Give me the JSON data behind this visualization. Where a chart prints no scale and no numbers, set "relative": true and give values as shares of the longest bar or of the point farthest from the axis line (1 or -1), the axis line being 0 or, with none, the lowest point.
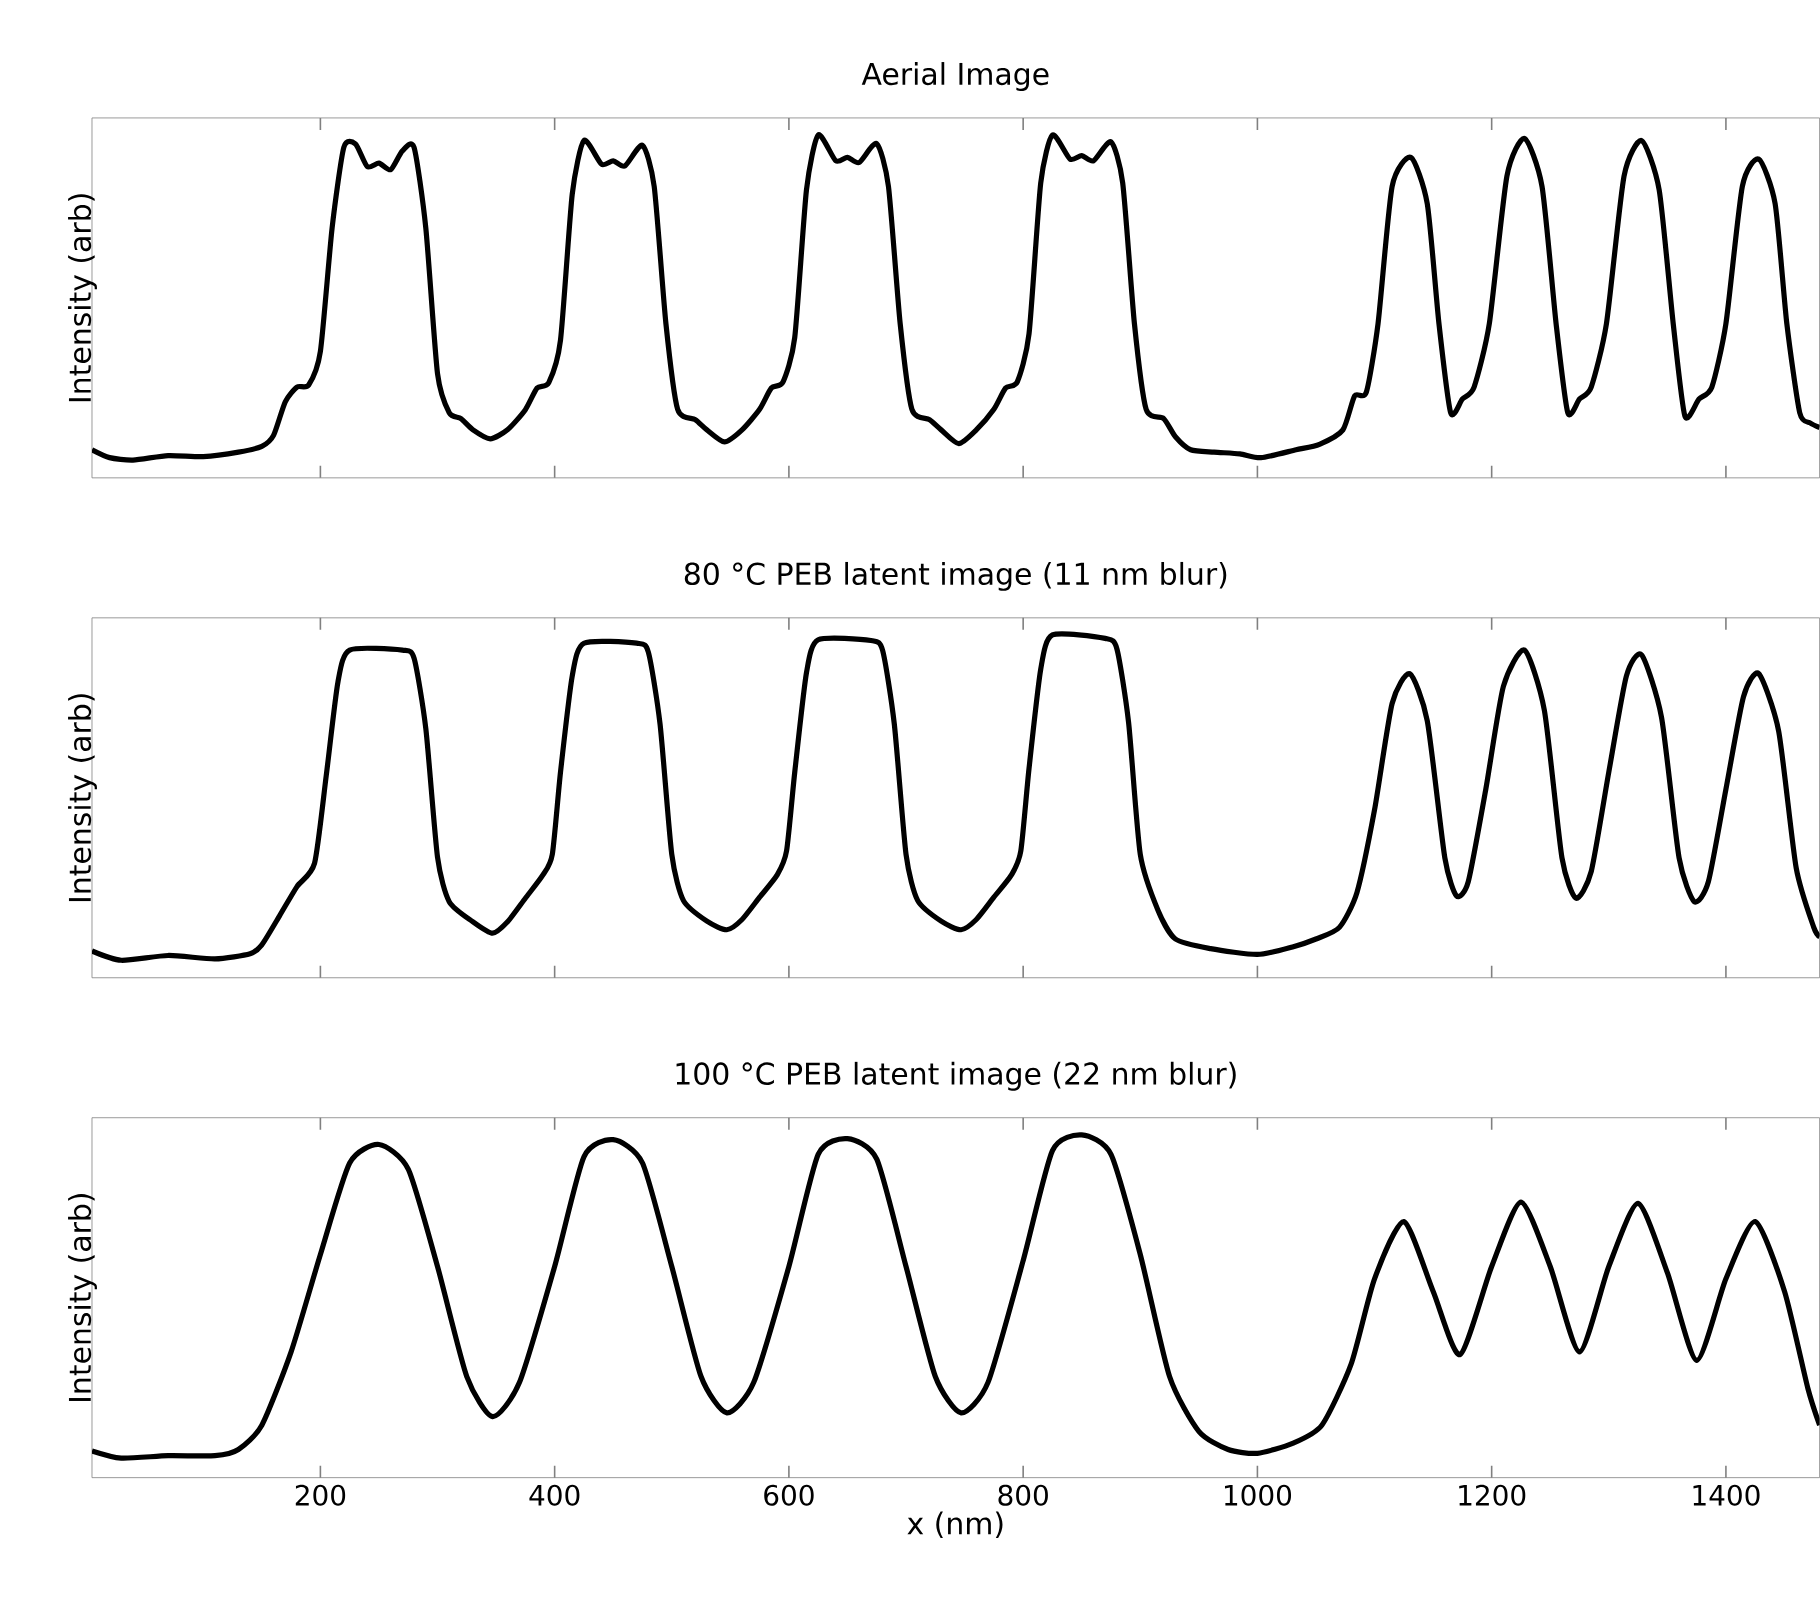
{
  "chart_data": [
    {
      "type": "line",
      "title": "Aerial Image",
      "ylabel": "Intensity (arb)",
      "relative": true,
      "xlim": [
        5,
        1480
      ],
      "xticks": [
        200,
        400,
        600,
        800,
        1000,
        1200,
        1400
      ],
      "tick_labels": false,
      "color": "#000000",
      "x": [
        5,
        20,
        40,
        70,
        100,
        130,
        150,
        160,
        170,
        180,
        190,
        200,
        210,
        220,
        230,
        240,
        250,
        260,
        270,
        280,
        290,
        300,
        310,
        320,
        330,
        345,
        360,
        375,
        385,
        395,
        405,
        415,
        425,
        440,
        450,
        460,
        475,
        485,
        495,
        505,
        520,
        530,
        545,
        560,
        575,
        585,
        595,
        605,
        615,
        625,
        640,
        650,
        660,
        675,
        685,
        695,
        705,
        720,
        730,
        745,
        760,
        775,
        785,
        795,
        805,
        815,
        825,
        840,
        850,
        860,
        875,
        885,
        895,
        905,
        920,
        930,
        943,
        963,
        985,
        1003,
        1033,
        1053,
        1073,
        1083,
        1093,
        1103,
        1115,
        1131,
        1145,
        1155,
        1165,
        1175,
        1185,
        1198,
        1213,
        1228,
        1243,
        1255,
        1265,
        1275,
        1285,
        1298,
        1313,
        1328,
        1343,
        1355,
        1365,
        1377,
        1388,
        1400,
        1414,
        1428,
        1442,
        1452,
        1463,
        1472,
        1480
      ],
      "values": [
        0.082,
        0.059,
        0.052,
        0.065,
        0.062,
        0.075,
        0.092,
        0.124,
        0.222,
        0.265,
        0.271,
        0.369,
        0.729,
        0.964,
        0.974,
        0.908,
        0.918,
        0.899,
        0.954,
        0.964,
        0.729,
        0.304,
        0.19,
        0.173,
        0.141,
        0.114,
        0.141,
        0.199,
        0.262,
        0.278,
        0.402,
        0.827,
        0.984,
        0.915,
        0.925,
        0.91,
        0.97,
        0.85,
        0.45,
        0.2,
        0.17,
        0.14,
        0.105,
        0.14,
        0.2,
        0.262,
        0.28,
        0.41,
        0.84,
        1.0,
        0.925,
        0.935,
        0.92,
        0.975,
        0.85,
        0.45,
        0.2,
        0.17,
        0.14,
        0.1,
        0.14,
        0.2,
        0.262,
        0.28,
        0.42,
        0.86,
        1.0,
        0.93,
        0.94,
        0.925,
        0.98,
        0.86,
        0.45,
        0.2,
        0.173,
        0.12,
        0.082,
        0.075,
        0.07,
        0.059,
        0.082,
        0.098,
        0.14,
        0.239,
        0.25,
        0.45,
        0.85,
        0.935,
        0.8,
        0.45,
        0.19,
        0.23,
        0.265,
        0.45,
        0.88,
        0.99,
        0.85,
        0.45,
        0.19,
        0.23,
        0.265,
        0.45,
        0.88,
        0.984,
        0.84,
        0.45,
        0.18,
        0.23,
        0.265,
        0.45,
        0.85,
        0.93,
        0.8,
        0.45,
        0.19,
        0.16,
        0.147
      ]
    },
    {
      "type": "line",
      "title": "80 °C PEB latent image (11 nm blur)",
      "ylabel": "Intensity (arb)",
      "relative": true,
      "xlim": [
        5,
        1480
      ],
      "xticks": [
        200,
        400,
        600,
        800,
        1000,
        1200,
        1400
      ],
      "tick_labels": false,
      "color": "#000000",
      "x": [
        5,
        30,
        70,
        110,
        140,
        150,
        165,
        180,
        195,
        205,
        215,
        225,
        270,
        280,
        290,
        300,
        310,
        330,
        347,
        360,
        375,
        390,
        398,
        405,
        415,
        425,
        470,
        480,
        490,
        500,
        510,
        530,
        547,
        560,
        575,
        590,
        598,
        605,
        615,
        625,
        670,
        680,
        690,
        700,
        710,
        730,
        747,
        760,
        775,
        790,
        798,
        805,
        815,
        825,
        870,
        880,
        890,
        900,
        915,
        930,
        960,
        1000,
        1030,
        1050,
        1070,
        1085,
        1100,
        1115,
        1130,
        1145,
        1160,
        1170,
        1180,
        1195,
        1210,
        1228,
        1245,
        1260,
        1272,
        1285,
        1300,
        1315,
        1328,
        1345,
        1360,
        1373,
        1385,
        1400,
        1415,
        1428,
        1445,
        1460,
        1475,
        1480
      ],
      "values": [
        0.078,
        0.051,
        0.065,
        0.055,
        0.07,
        0.096,
        0.18,
        0.266,
        0.334,
        0.59,
        0.863,
        0.956,
        0.956,
        0.932,
        0.727,
        0.352,
        0.222,
        0.164,
        0.13,
        0.164,
        0.232,
        0.3,
        0.36,
        0.6,
        0.88,
        0.976,
        0.976,
        0.95,
        0.74,
        0.36,
        0.225,
        0.165,
        0.14,
        0.17,
        0.235,
        0.3,
        0.37,
        0.6,
        0.89,
        0.986,
        0.984,
        0.955,
        0.74,
        0.36,
        0.225,
        0.165,
        0.14,
        0.17,
        0.235,
        0.3,
        0.37,
        0.61,
        0.9,
        1.0,
        0.99,
        0.96,
        0.745,
        0.36,
        0.198,
        0.113,
        0.085,
        0.068,
        0.09,
        0.113,
        0.147,
        0.249,
        0.49,
        0.8,
        0.887,
        0.75,
        0.35,
        0.239,
        0.28,
        0.55,
        0.85,
        0.956,
        0.78,
        0.35,
        0.232,
        0.31,
        0.6,
        0.88,
        0.942,
        0.76,
        0.35,
        0.222,
        0.28,
        0.55,
        0.82,
        0.887,
        0.72,
        0.32,
        0.147,
        0.12
      ]
    },
    {
      "type": "line",
      "title": "100 °C PEB latent image (22 nm blur)",
      "ylabel": "Intensity (arb)",
      "xlabel": "x (nm)",
      "relative": true,
      "xlim": [
        5,
        1480
      ],
      "xticks": [
        200,
        400,
        600,
        800,
        1000,
        1200,
        1400
      ],
      "tick_labels": "x",
      "color": "#000000",
      "x": [
        5,
        30,
        70,
        110,
        130,
        150,
        175,
        200,
        225,
        250,
        275,
        300,
        325,
        347,
        370,
        400,
        425,
        450,
        475,
        500,
        525,
        547,
        570,
        600,
        625,
        650,
        675,
        700,
        725,
        747,
        770,
        800,
        825,
        850,
        875,
        900,
        925,
        950,
        975,
        1000,
        1030,
        1055,
        1080,
        1100,
        1125,
        1150,
        1173,
        1200,
        1225,
        1250,
        1275,
        1300,
        1325,
        1350,
        1375,
        1400,
        1425,
        1450,
        1470,
        1480
      ],
      "values": [
        0.078,
        0.057,
        0.064,
        0.064,
        0.082,
        0.153,
        0.367,
        0.651,
        0.918,
        0.972,
        0.9,
        0.616,
        0.295,
        0.178,
        0.278,
        0.616,
        0.936,
        0.986,
        0.918,
        0.616,
        0.295,
        0.189,
        0.278,
        0.616,
        0.943,
        0.989,
        0.929,
        0.616,
        0.295,
        0.189,
        0.278,
        0.633,
        0.954,
        1.0,
        0.943,
        0.651,
        0.295,
        0.135,
        0.082,
        0.071,
        0.1,
        0.153,
        0.331,
        0.58,
        0.747,
        0.544,
        0.359,
        0.616,
        0.804,
        0.616,
        0.367,
        0.616,
        0.8,
        0.598,
        0.342,
        0.58,
        0.747,
        0.544,
        0.26,
        0.153
      ]
    }
  ]
}
